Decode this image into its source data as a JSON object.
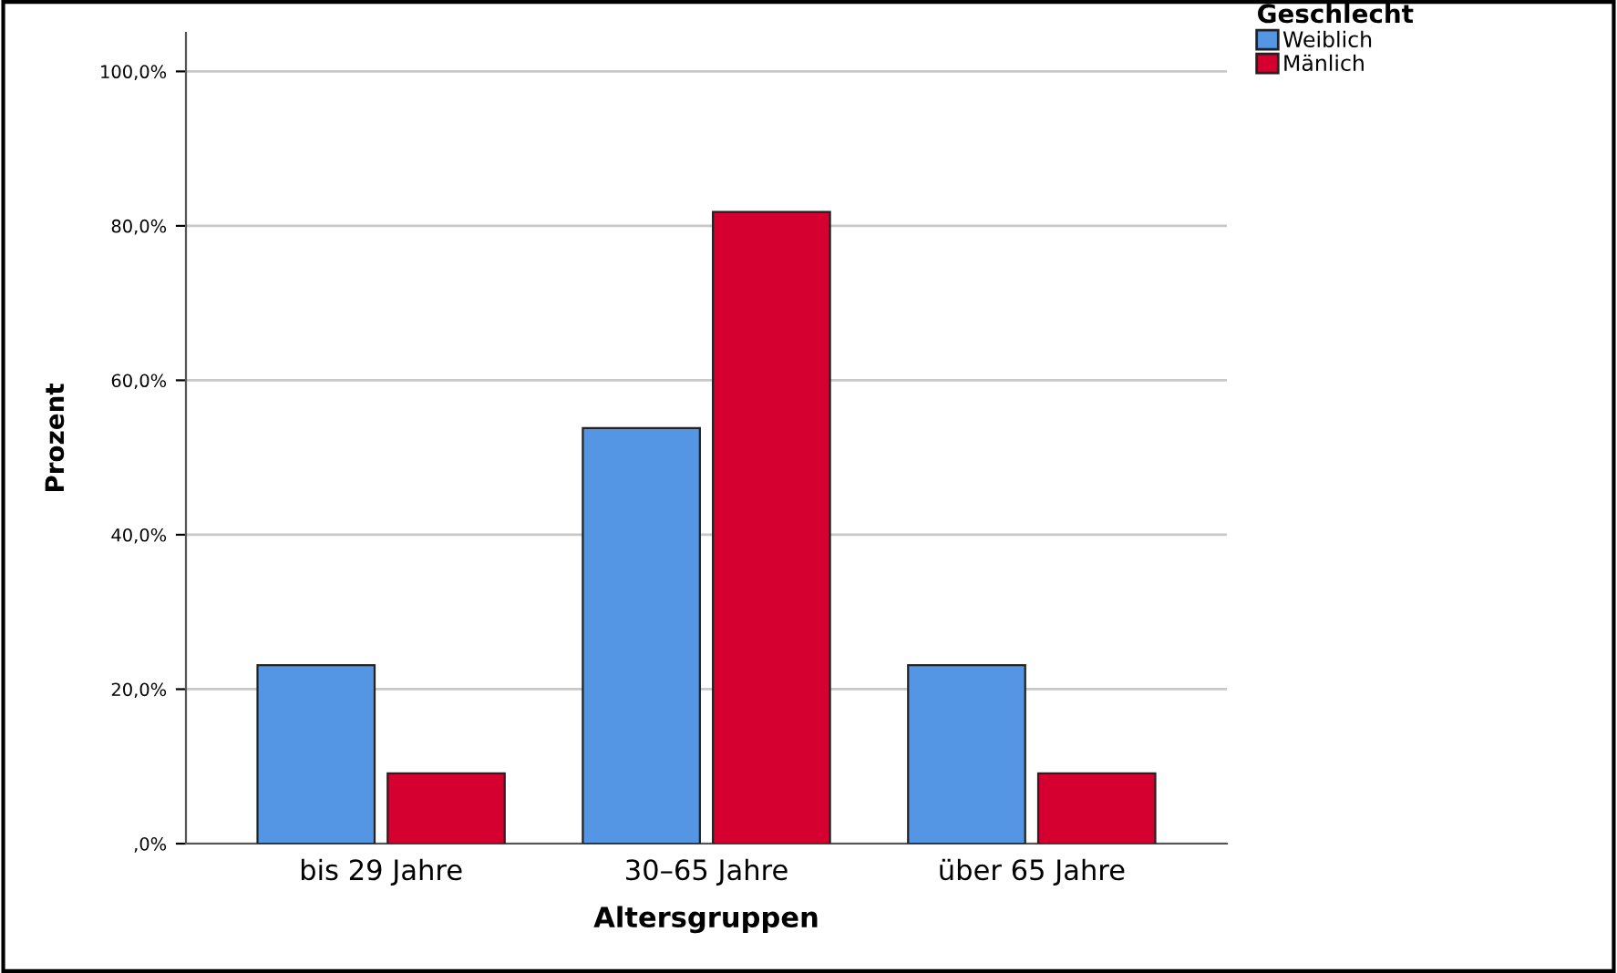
{
  "chart_data": {
    "type": "bar",
    "xlabel": "Altersgruppen",
    "ylabel": "Prozent",
    "legend_title": "Geschlecht",
    "categories": [
      "bis 29 Jahre",
      "30–65 Jahre",
      "über 65 Jahre"
    ],
    "series": [
      {
        "name": "Weiblich",
        "color": "#5596e4",
        "values": [
          23.1,
          53.8,
          23.1
        ]
      },
      {
        "name": "Mänlich",
        "color": "#d5002f",
        "values": [
          9.1,
          81.8,
          9.1
        ]
      }
    ],
    "ylim": [
      0,
      105
    ],
    "yticks": [
      {
        "value": 0,
        "label": ",0%"
      },
      {
        "value": 20,
        "label": "20,0%"
      },
      {
        "value": 40,
        "label": "40,0%"
      },
      {
        "value": 60,
        "label": "60,0%"
      },
      {
        "value": 80,
        "label": "80,0%"
      },
      {
        "value": 100,
        "label": "100,0%"
      }
    ],
    "grid": "y",
    "legend": "top right"
  }
}
